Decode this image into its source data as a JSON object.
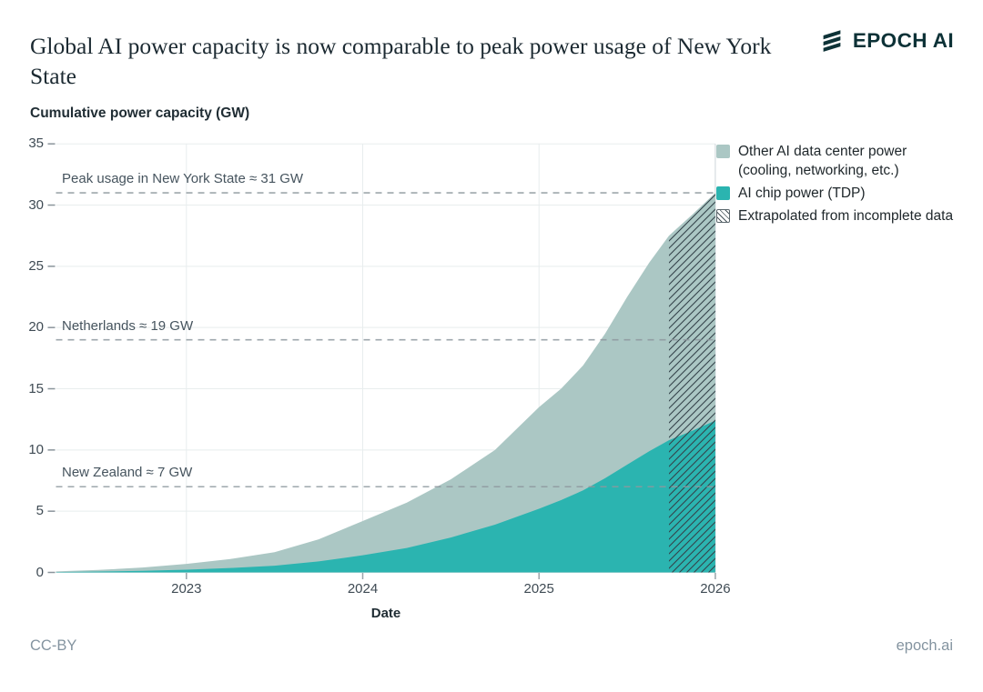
{
  "header": {
    "logo_text": "EPOCH AI"
  },
  "footer": {
    "license": "CC-BY",
    "site": "epoch.ai"
  },
  "chart_data": {
    "type": "area",
    "stacked": true,
    "title": "Global AI power capacity is now comparable to peak power usage of New York State",
    "ylabel": "Cumulative power capacity (GW)",
    "xlabel": "Date",
    "xlim": [
      2022.26,
      2026
    ],
    "ylim": [
      0,
      35
    ],
    "x_ticks": [
      2023,
      2024,
      2025,
      2026
    ],
    "y_ticks": [
      0,
      5,
      10,
      15,
      20,
      25,
      30,
      35
    ],
    "grid": true,
    "legend_position": "right-top",
    "x": [
      2022.26,
      2022.5,
      2022.75,
      2023,
      2023.25,
      2023.5,
      2023.75,
      2024,
      2024.25,
      2024.5,
      2024.75,
      2025,
      2025.125,
      2025.25,
      2025.375,
      2025.5,
      2025.625,
      2025.737,
      2025.875,
      2026
    ],
    "series": [
      {
        "name": "AI chip power (TDP)",
        "role": "chip",
        "color": "#2bb4b0",
        "values": [
          0.03,
          0.07,
          0.13,
          0.22,
          0.36,
          0.55,
          0.9,
          1.4,
          2.0,
          2.85,
          3.9,
          5.2,
          5.9,
          6.7,
          7.7,
          8.8,
          9.9,
          10.8,
          11.6,
          12.4
        ]
      },
      {
        "name": "Other AI data center power (cooling, networking, etc.)",
        "role": "other",
        "color": "#abc7c4",
        "values": [
          0.05,
          0.13,
          0.27,
          0.48,
          0.74,
          1.1,
          1.8,
          2.8,
          3.7,
          4.75,
          6.1,
          8.3,
          9.1,
          10.2,
          11.8,
          13.7,
          15.4,
          16.7,
          17.7,
          18.6
        ]
      }
    ],
    "totals_gw": [
      0.08,
      0.2,
      0.4,
      0.7,
      1.1,
      1.65,
      2.7,
      4.2,
      5.7,
      7.6,
      10.0,
      13.5,
      15.0,
      16.9,
      19.5,
      22.5,
      25.3,
      27.5,
      29.3,
      31.0
    ],
    "extrapolated": {
      "label": "Extrapolated from incomplete data",
      "from_x": 2025.737
    },
    "ref_lines": [
      {
        "label": "Peak usage in New York State ≈ 31 GW",
        "value": 31
      },
      {
        "label": "Netherlands ≈ 19 GW",
        "value": 19
      },
      {
        "label": "New Zealand ≈ 7 GW",
        "value": 7
      }
    ],
    "legend": [
      {
        "label": "Other AI data center power (cooling, networking, etc.)",
        "swatch": "other"
      },
      {
        "label": "AI chip power (TDP)",
        "swatch": "chip"
      },
      {
        "label": "Extrapolated from incomplete data",
        "swatch": "hatch"
      }
    ],
    "colors": {
      "chip": "#2bb4b0",
      "other": "#abc7c4",
      "hatch_line": "#33424a",
      "ref_line": "#8e989e",
      "grid": "#e8edee",
      "axis": "#cdd6d8",
      "tick": "#8a949b",
      "brand_dark": "#0d3237"
    }
  }
}
